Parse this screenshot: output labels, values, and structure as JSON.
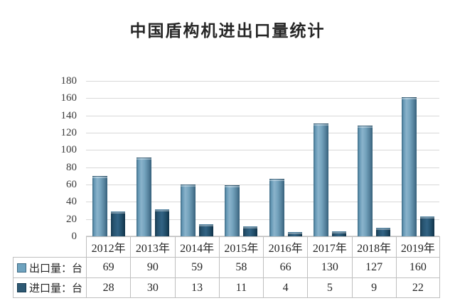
{
  "title": "中国盾构机进出口量统计",
  "chart_data": {
    "type": "bar",
    "title": "中国盾构机进出口量统计",
    "categories": [
      "2012年",
      "2013年",
      "2014年",
      "2015年",
      "2016年",
      "2017年",
      "2018年",
      "2019年"
    ],
    "series": [
      {
        "name": "出口量：台",
        "values": [
          69,
          90,
          59,
          58,
          66,
          130,
          127,
          160
        ],
        "color": "#6FA3BF"
      },
      {
        "name": "进口量：台",
        "values": [
          28,
          30,
          13,
          11,
          4,
          5,
          9,
          22
        ],
        "color": "#2E5974"
      }
    ],
    "ylim": [
      0,
      180
    ],
    "yticks": [
      0,
      20,
      40,
      60,
      80,
      100,
      120,
      140,
      160,
      180
    ],
    "grid": true,
    "legend_position": "left-of-data-table",
    "data_table": true
  },
  "colors": {
    "export_bar": "#6FA3BF",
    "import_bar": "#2E5974",
    "gridline": "#d8d8d8",
    "table_border": "#bfbfbf",
    "title_text": "#262626",
    "background": "#ffffff"
  }
}
